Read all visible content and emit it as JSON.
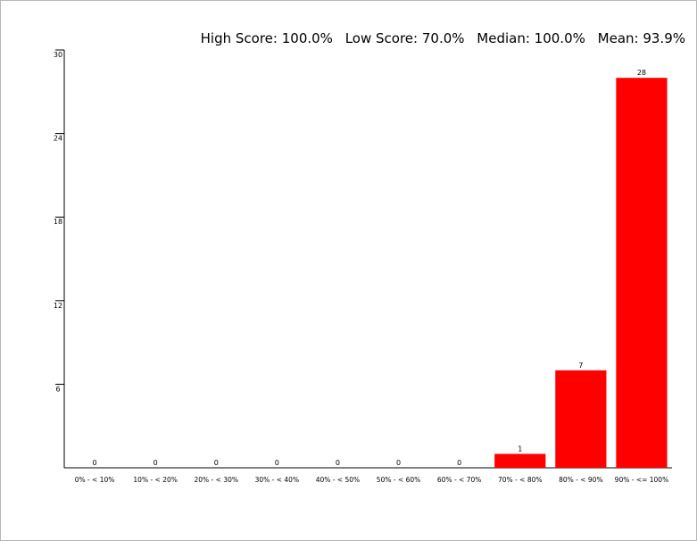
{
  "summary": {
    "high": "High Score: 100.0%",
    "low": "Low Score: 70.0%",
    "median": "Median: 100.0%",
    "mean": "Mean: 93.9%"
  },
  "chart_data": {
    "type": "bar",
    "title": "",
    "xlabel": "",
    "ylabel": "",
    "categories": [
      "0% - < 10%",
      "10% - < 20%",
      "20% - < 30%",
      "30% - < 40%",
      "40% - < 50%",
      "50% - < 60%",
      "60% - < 70%",
      "70% - < 80%",
      "80% - < 90%",
      "90% - <= 100%"
    ],
    "values": [
      0,
      0,
      0,
      0,
      0,
      0,
      0,
      1,
      7,
      28
    ],
    "ylim": [
      0,
      30
    ],
    "yticks": [
      6,
      12,
      18,
      24,
      30
    ],
    "grid": false,
    "bar_color": "#ff0000"
  }
}
